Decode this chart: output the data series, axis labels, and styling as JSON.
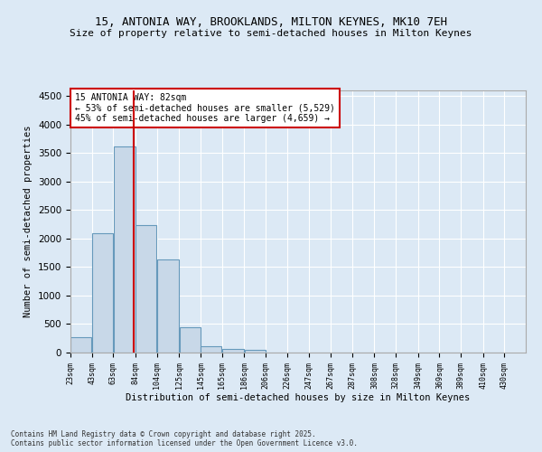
{
  "title_line1": "15, ANTONIA WAY, BROOKLANDS, MILTON KEYNES, MK10 7EH",
  "title_line2": "Size of property relative to semi-detached houses in Milton Keynes",
  "xlabel": "Distribution of semi-detached houses by size in Milton Keynes",
  "ylabel": "Number of semi-detached properties",
  "footnote": "Contains HM Land Registry data © Crown copyright and database right 2025.\nContains public sector information licensed under the Open Government Licence v3.0.",
  "bar_left_edges": [
    23,
    43,
    63,
    84,
    104,
    125,
    145,
    165,
    186,
    206,
    226,
    247,
    267,
    287,
    308,
    328,
    349,
    369,
    389,
    410
  ],
  "bar_widths": [
    20,
    20,
    21,
    20,
    21,
    20,
    20,
    21,
    20,
    20,
    21,
    20,
    20,
    21,
    20,
    21,
    20,
    20,
    21,
    20
  ],
  "bar_heights": [
    270,
    2100,
    3620,
    2230,
    1640,
    450,
    110,
    60,
    50,
    5,
    3,
    2,
    1,
    1,
    0,
    0,
    0,
    0,
    0,
    0
  ],
  "tick_labels": [
    "23sqm",
    "43sqm",
    "63sqm",
    "84sqm",
    "104sqm",
    "125sqm",
    "145sqm",
    "165sqm",
    "186sqm",
    "206sqm",
    "226sqm",
    "247sqm",
    "267sqm",
    "287sqm",
    "308sqm",
    "328sqm",
    "349sqm",
    "369sqm",
    "389sqm",
    "410sqm",
    "430sqm"
  ],
  "tick_positions": [
    23,
    43,
    63,
    84,
    104,
    125,
    145,
    165,
    186,
    206,
    226,
    247,
    267,
    287,
    308,
    328,
    349,
    369,
    389,
    410,
    430
  ],
  "bar_color": "#c8d8e8",
  "bar_edgecolor": "#6699bb",
  "vline_x": 82,
  "vline_color": "#cc0000",
  "annotation_title": "15 ANTONIA WAY: 82sqm",
  "annotation_line2": "← 53% of semi-detached houses are smaller (5,529)",
  "annotation_line3": "45% of semi-detached houses are larger (4,659) →",
  "annotation_box_color": "#cc0000",
  "ylim": [
    0,
    4600
  ],
  "xlim": [
    23,
    450
  ],
  "background_color": "#dce9f5",
  "plot_bg_color": "#dce9f5",
  "title_fontsize": 9,
  "subtitle_fontsize": 8
}
